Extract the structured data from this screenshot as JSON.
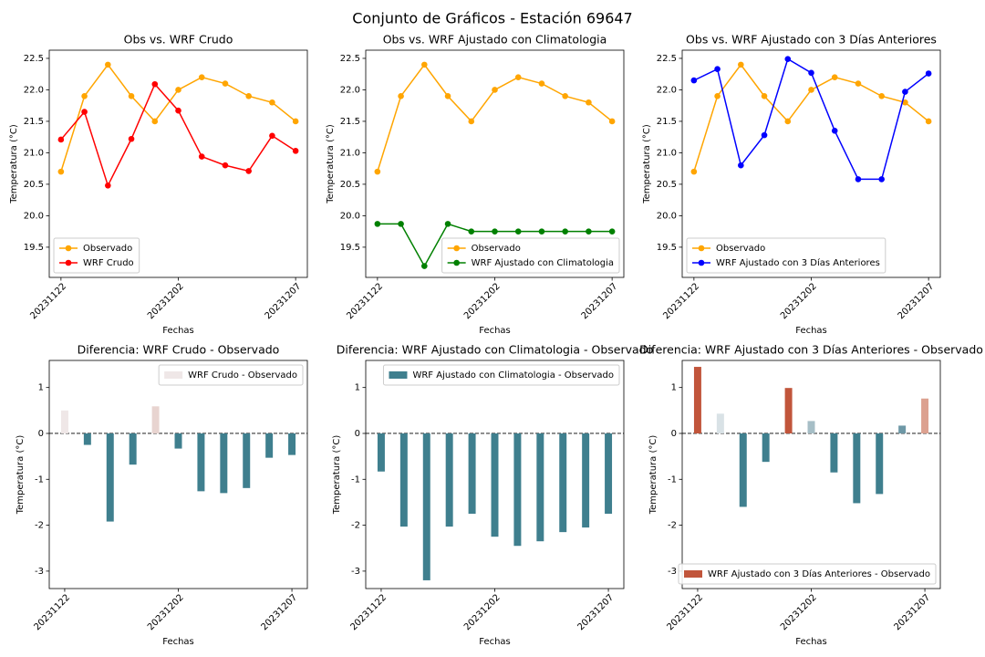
{
  "title": "Conjunto de Gráficos - Estación 69647",
  "chart_data": [
    {
      "type": "line",
      "title": "Obs vs. WRF Crudo",
      "xlabel": "Fechas",
      "ylabel": "Temperatura (°C)",
      "categories": [
        "20231122",
        null,
        null,
        null,
        null,
        "20231202",
        null,
        null,
        null,
        null,
        "20231207"
      ],
      "series": [
        {
          "name": "Observado",
          "color": "#ffa500",
          "values": [
            20.7,
            21.9,
            22.4,
            21.9,
            21.5,
            22.0,
            22.2,
            22.1,
            21.9,
            21.8,
            21.5
          ]
        },
        {
          "name": "WRF Crudo",
          "color": "#ff0000",
          "values": [
            21.21,
            21.65,
            20.48,
            21.22,
            22.09,
            21.67,
            20.94,
            20.8,
            20.71,
            21.27,
            21.03
          ]
        }
      ],
      "ylim": [
        19.02,
        22.63
      ],
      "yticks": [
        19.5,
        {
          "value": 20,
          "label": "20.0"
        },
        20.5,
        {
          "value": 21,
          "label": "21.0"
        },
        21.5,
        {
          "value": 22,
          "label": "22.0"
        },
        22.5
      ],
      "legend_loc": "lower left"
    },
    {
      "type": "line",
      "title": "Obs vs. WRF Ajustado con Climatologia",
      "xlabel": "Fechas",
      "ylabel": "Temperatura (°C)",
      "categories": [
        "20231122",
        null,
        null,
        null,
        null,
        "20231202",
        null,
        null,
        null,
        null,
        "20231207"
      ],
      "series": [
        {
          "name": "Observado",
          "color": "#ffa500",
          "values": [
            20.7,
            21.9,
            22.4,
            21.9,
            21.5,
            22.0,
            22.2,
            22.1,
            21.9,
            21.8,
            21.5
          ]
        },
        {
          "name": "WRF Ajustado con Climatologia",
          "color": "#008000",
          "values": [
            19.87,
            19.87,
            19.2,
            19.87,
            19.75,
            19.75,
            19.75,
            19.75,
            19.75,
            19.75,
            19.75
          ]
        }
      ],
      "ylim": [
        19.02,
        22.63
      ],
      "yticks": [
        19.5,
        {
          "value": 20,
          "label": "20.0"
        },
        20.5,
        {
          "value": 21,
          "label": "21.0"
        },
        21.5,
        {
          "value": 22,
          "label": "22.0"
        },
        22.5
      ],
      "legend_loc": "lower right"
    },
    {
      "type": "line",
      "title": "Obs vs. WRF Ajustado con 3 Días Anteriores",
      "xlabel": "Fechas",
      "ylabel": "Temperatura (°C)",
      "categories": [
        "20231122",
        null,
        null,
        null,
        null,
        "20231202",
        null,
        null,
        null,
        null,
        "20231207"
      ],
      "series": [
        {
          "name": "Observado",
          "color": "#ffa500",
          "values": [
            20.7,
            21.9,
            22.4,
            21.9,
            21.5,
            22.0,
            22.2,
            22.1,
            21.9,
            21.8,
            21.5
          ]
        },
        {
          "name": "WRF Ajustado con 3 Días Anteriores",
          "color": "#0000ff",
          "values": [
            22.15,
            22.33,
            20.8,
            21.28,
            22.49,
            22.27,
            21.35,
            20.58,
            20.58,
            21.97,
            22.26
          ]
        }
      ],
      "ylim": [
        19.02,
        22.63
      ],
      "yticks": [
        19.5,
        {
          "value": 20,
          "label": "20.0"
        },
        20.5,
        {
          "value": 21,
          "label": "21.0"
        },
        21.5,
        {
          "value": 22,
          "label": "22.0"
        },
        22.5
      ],
      "legend_loc": "lower left"
    },
    {
      "type": "bar",
      "title": "Diferencia: WRF Crudo - Observado",
      "xlabel": "Fechas",
      "ylabel": "Temperatura (°C)",
      "categories": [
        "20231122",
        null,
        null,
        null,
        null,
        "20231202",
        null,
        null,
        null,
        null,
        "20231207"
      ],
      "series": [
        {
          "name": "WRF Crudo - Observado",
          "color": "#efe7e7",
          "values": [
            0.5,
            -0.25,
            -1.92,
            -0.68,
            0.59,
            -0.33,
            -1.26,
            -1.3,
            -1.19,
            -0.53,
            -0.47
          ],
          "colors": [
            "#efe7e7",
            "#3f7f8e",
            "#3f7f8e",
            "#3f7f8e",
            "#e8d4d0",
            "#3f7f8e",
            "#3f7f8e",
            "#3f7f8e",
            "#3f7f8e",
            "#3f7f8e",
            "#3f7f8e"
          ]
        }
      ],
      "ylim": [
        -3.38,
        1.59
      ],
      "yticks": [
        -3,
        -2,
        -1,
        0,
        1
      ],
      "hline": 0,
      "legend_loc": "upper right"
    },
    {
      "type": "bar",
      "title": "Diferencia: WRF Ajustado con Climatologia - Observado",
      "xlabel": "Fechas",
      "ylabel": "Temperatura (°C)",
      "categories": [
        "20231122",
        null,
        null,
        null,
        null,
        "20231202",
        null,
        null,
        null,
        null,
        "20231207"
      ],
      "series": [
        {
          "name": "WRF Ajustado con Climatologia - Observado",
          "color": "#3f7f8e",
          "values": [
            -0.83,
            -2.03,
            -3.2,
            -2.03,
            -1.75,
            -2.25,
            -2.45,
            -2.35,
            -2.15,
            -2.05,
            -1.75
          ],
          "colors": [
            "#3f7f8e",
            "#3f7f8e",
            "#3f7f8e",
            "#3f7f8e",
            "#3f7f8e",
            "#3f7f8e",
            "#3f7f8e",
            "#3f7f8e",
            "#3f7f8e",
            "#3f7f8e",
            "#3f7f8e"
          ]
        }
      ],
      "ylim": [
        -3.38,
        1.59
      ],
      "yticks": [
        -3,
        -2,
        -1,
        0,
        1
      ],
      "hline": 0,
      "legend_loc": "upper right"
    },
    {
      "type": "bar",
      "title": "Diferencia: WRF Ajustado con 3 Días Anteriores - Observado",
      "xlabel": "Fechas",
      "ylabel": "Temperatura (°C)",
      "categories": [
        "20231122",
        null,
        null,
        null,
        null,
        "20231202",
        null,
        null,
        null,
        null,
        "20231207"
      ],
      "series": [
        {
          "name": "WRF Ajustado con 3 Días Anteriores - Observado",
          "color": "#c1553b",
          "values": [
            1.45,
            0.43,
            -1.6,
            -0.62,
            0.99,
            0.27,
            -0.85,
            -1.52,
            -1.32,
            0.17,
            0.76
          ],
          "colors": [
            "#c1553b",
            "#d9e2e6",
            "#3f7f8e",
            "#3f7f8e",
            "#c1553b",
            "#a6bec6",
            "#3f7f8e",
            "#3f7f8e",
            "#3f7f8e",
            "#6e98a6",
            "#dca190"
          ]
        }
      ],
      "ylim": [
        -3.38,
        1.59
      ],
      "yticks": [
        -3,
        -2,
        -1,
        0,
        1
      ],
      "hline": 0,
      "legend_loc": "lower right"
    }
  ]
}
